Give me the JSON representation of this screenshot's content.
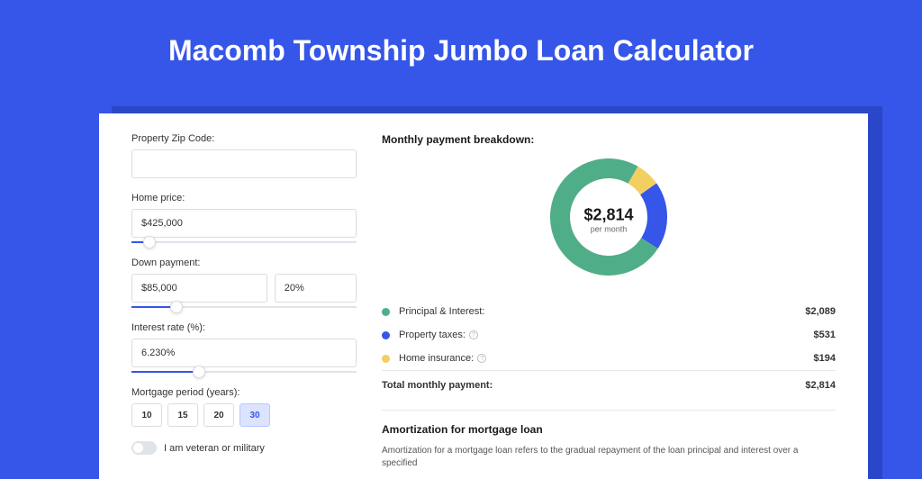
{
  "colors": {
    "page_bg": "#3556e8",
    "card_bg": "#ffffff",
    "shadow_bg": "#2a46c9",
    "text_primary": "#1a1a1a",
    "text_body": "#333333",
    "border": "#d9dce2",
    "green": "#4fae87",
    "blue": "#3556e8",
    "yellow": "#f3cf62"
  },
  "title": "Macomb Township Jumbo Loan Calculator",
  "form": {
    "zip": {
      "label": "Property Zip Code:",
      "value": ""
    },
    "price": {
      "label": "Home price:",
      "value": "$425,000",
      "slider_pct": 8
    },
    "down": {
      "label": "Down payment:",
      "amount": "$85,000",
      "pct": "20%",
      "slider_pct": 20
    },
    "rate": {
      "label": "Interest rate (%):",
      "value": "6.230%",
      "slider_pct": 30
    },
    "period": {
      "label": "Mortgage period (years):",
      "options": [
        "10",
        "15",
        "20",
        "30"
      ],
      "selected": "30"
    },
    "veteran": {
      "label": "I am veteran or military",
      "on": false
    }
  },
  "breakdown": {
    "title": "Monthly payment breakdown:",
    "center_amount": "$2,814",
    "center_sub": "per month",
    "donut": {
      "size": 130,
      "thickness": 22,
      "segments": [
        {
          "value": 2089,
          "color": "#4fae87"
        },
        {
          "value": 531,
          "color": "#3556e8"
        },
        {
          "value": 194,
          "color": "#f3cf62"
        }
      ]
    },
    "items": [
      {
        "label": "Principal & Interest:",
        "value": "$2,089",
        "color": "#4fae87",
        "info": false
      },
      {
        "label": "Property taxes:",
        "value": "$531",
        "color": "#3556e8",
        "info": true
      },
      {
        "label": "Home insurance:",
        "value": "$194",
        "color": "#f3cf62",
        "info": true
      }
    ],
    "total": {
      "label": "Total monthly payment:",
      "value": "$2,814"
    }
  },
  "amortization": {
    "title": "Amortization for mortgage loan",
    "text": "Amortization for a mortgage loan refers to the gradual repayment of the loan principal and interest over a specified"
  }
}
